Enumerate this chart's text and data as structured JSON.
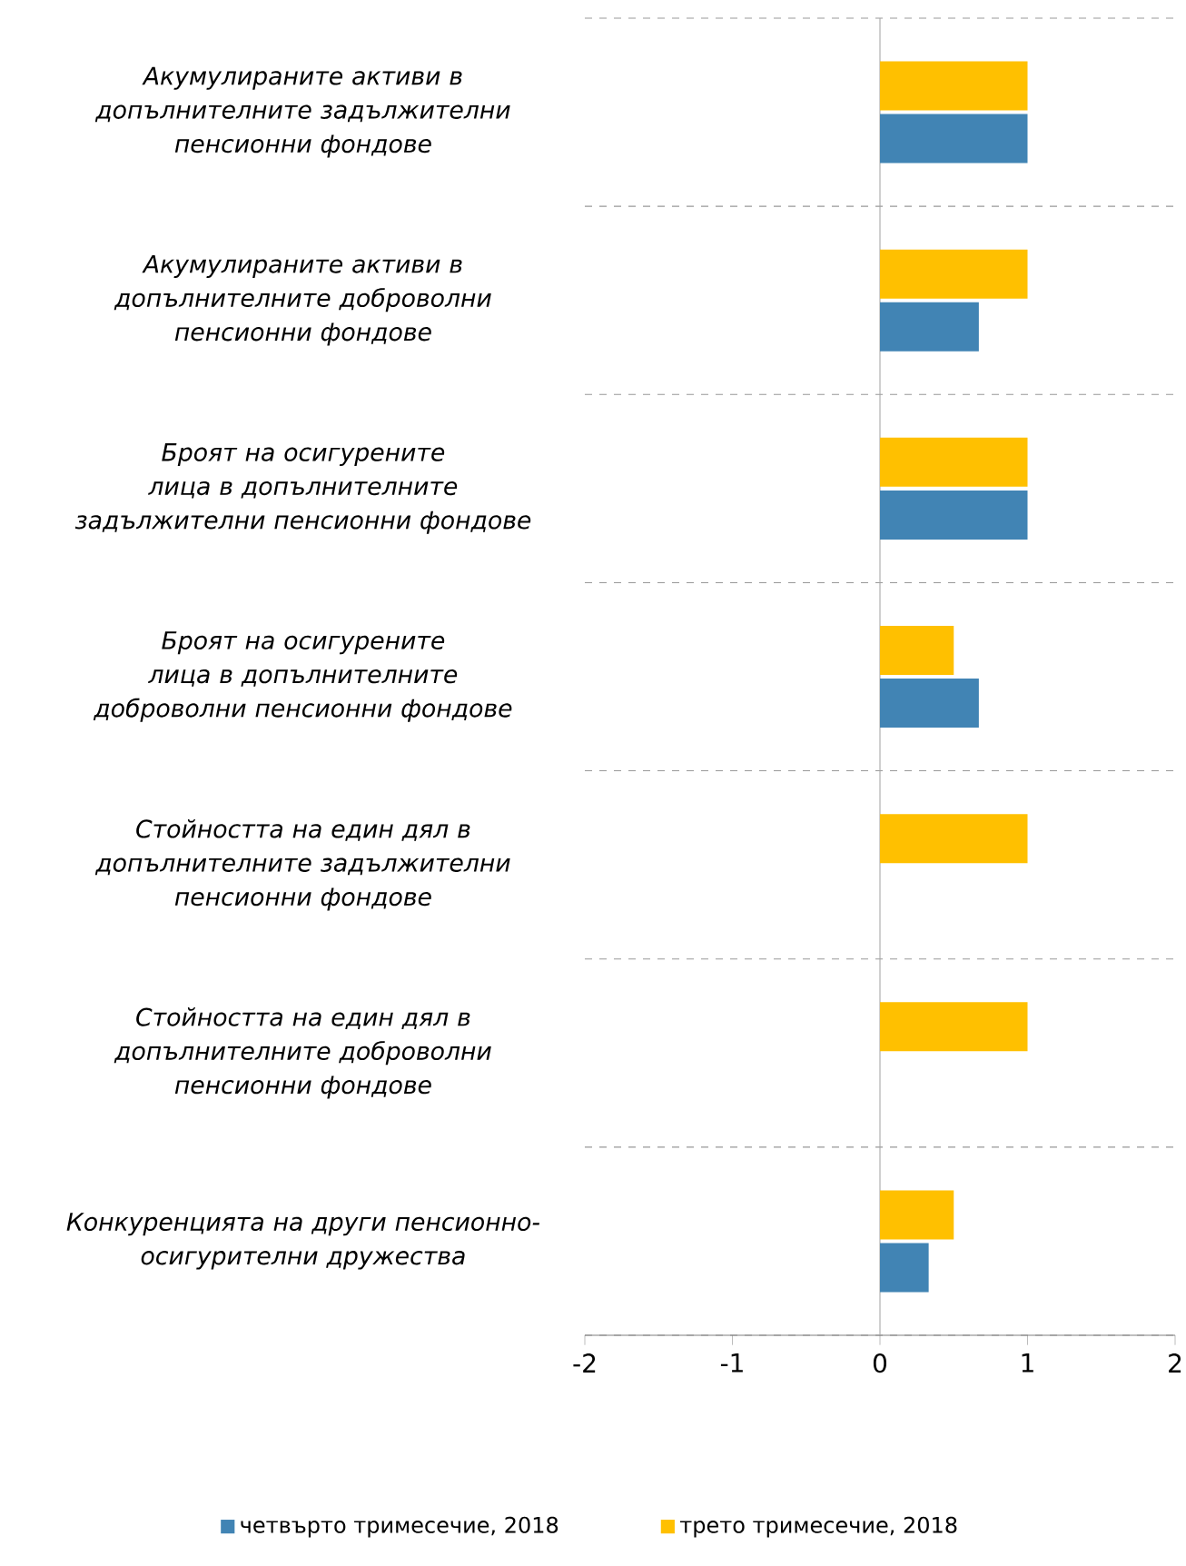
{
  "chart_data": {
    "type": "bar",
    "orientation": "horizontal",
    "categories": [
      "Акумулираните активи в допълнителните задължителни пенсионни фондове",
      "Акумулираните активи в допълнителните доброволни пенсионни фондове",
      "Броят на осигурените лица в допълнителните задължителни пенсионни фондове",
      "Броят на осигурените лица в допълнителните доброволни пенсионни фондове",
      "Стойността на един дял в допълнителните задължителни пенсионни фондове",
      "Стойността на един дял в допълнителните доброволни пенсионни фондове",
      "Конкуренцията на други пенсионно-осигурителни дружества"
    ],
    "series": [
      {
        "name": "четвърто тримесечие, 2018",
        "color": "#4184b4",
        "values": [
          1,
          0.67,
          1,
          0.67,
          0,
          0,
          0.33
        ]
      },
      {
        "name": "трето тримесечие, 2018",
        "color": "#ffc000",
        "values": [
          1,
          1,
          1,
          0.5,
          1,
          1,
          0.5
        ]
      }
    ],
    "xlim": [
      -2,
      2
    ],
    "xticks": [
      -2,
      -1,
      0,
      1,
      2
    ],
    "grid": "y",
    "ref_lines": [
      {
        "axis": "x",
        "value": 0,
        "color": "#a6a6a6"
      }
    ],
    "legend": "bottom"
  }
}
